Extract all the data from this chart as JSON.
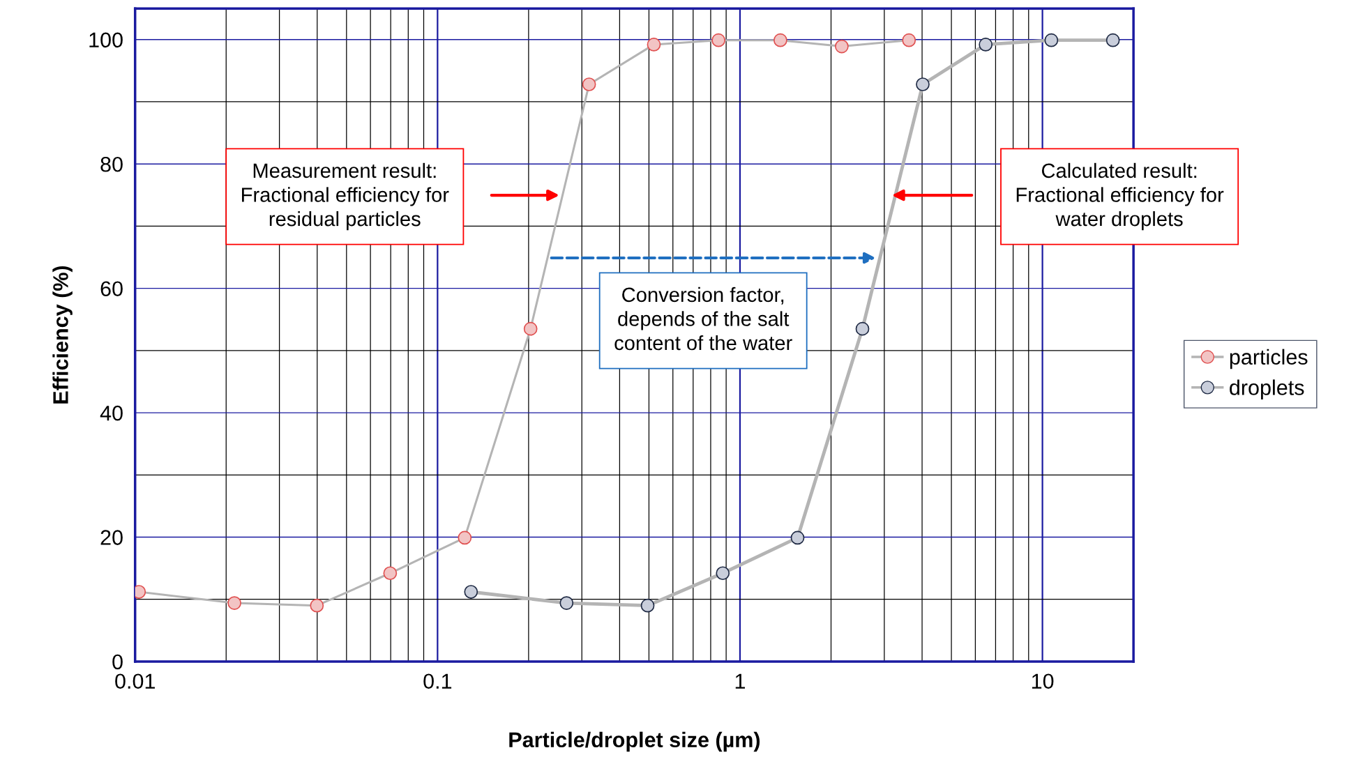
{
  "chart_data": {
    "type": "line",
    "xlabel": "Particle/droplet size (µm)",
    "ylabel": "Efficiency (%)",
    "log": "x",
    "xlim": [
      0.01,
      20
    ],
    "xticks": [
      0.01,
      0.1,
      1,
      10
    ],
    "ylim": [
      0,
      105
    ],
    "yticks": [
      0,
      20,
      40,
      60,
      80,
      100
    ],
    "grid": true,
    "legend": "right",
    "marker": "circle",
    "line_style": "solid",
    "series": [
      {
        "name": "particles",
        "color": "#f2c4c4",
        "x": [
          0.0103,
          0.0213,
          0.0399,
          0.0697,
          0.123,
          0.203,
          0.317,
          0.519,
          0.849,
          1.36,
          2.17,
          3.62
        ],
        "values": [
          11.2,
          9.4,
          9.0,
          14.2,
          19.9,
          53.5,
          92.8,
          99.2,
          99.9,
          99.9,
          98.9,
          99.9
        ]
      },
      {
        "name": "droplets",
        "color": "#c9cedb",
        "x": [
          0.129,
          0.267,
          0.495,
          0.877,
          1.55,
          2.54,
          4.02,
          6.49,
          10.7,
          17.1
        ],
        "values": [
          11.2,
          9.4,
          9.0,
          14.2,
          19.9,
          53.5,
          92.8,
          99.2,
          99.9,
          99.9
        ]
      }
    ],
    "annotations": [
      "Measurement result:\nFractional efficiency for\nresidual particles",
      "Calculated result:\nFractional efficiency for\nwater droplets",
      "Conversion factor,\ndepends of the salt\ncontent of the water"
    ]
  }
}
